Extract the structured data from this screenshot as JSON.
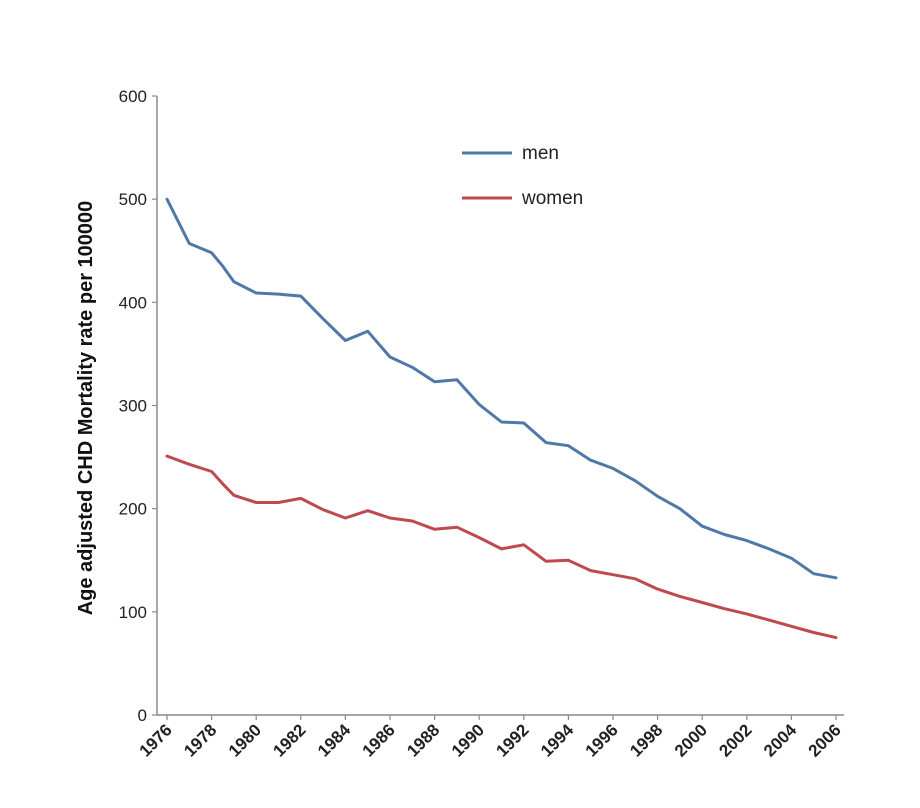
{
  "chart_data": {
    "type": "line",
    "ylabel": "Age adjusted CHD Mortality rate per 100000",
    "xlabel": "",
    "title": "",
    "ylim": [
      0,
      600
    ],
    "xlim": [
      1976,
      2006
    ],
    "y_ticks": [
      "0",
      "100",
      "200",
      "300",
      "400",
      "500",
      "600"
    ],
    "x_ticks": [
      "1976",
      "1978",
      "1980",
      "1982",
      "1984",
      "1986",
      "1988",
      "1990",
      "1992",
      "1994",
      "1996",
      "1998",
      "2000",
      "2002",
      "2004",
      "2006"
    ],
    "grid": false,
    "legend": "top-center",
    "series": [
      {
        "name": "men",
        "color": "#4f77a8",
        "x": [
          1976,
          1977,
          1978,
          1978.5,
          1979,
          1980,
          1981,
          1982,
          1983,
          1984,
          1985,
          1986,
          1987,
          1988,
          1989,
          1990,
          1991,
          1992,
          1993,
          1994,
          1995,
          1996,
          1997,
          1998,
          1999,
          2000,
          2001,
          2002,
          2003,
          2004,
          2005,
          2006
        ],
        "y": [
          500,
          457,
          448,
          435,
          420,
          409,
          408,
          406,
          384,
          363,
          372,
          347,
          337,
          323,
          325,
          301,
          284,
          283,
          264,
          261,
          247,
          239,
          227,
          212,
          200,
          183,
          175,
          169,
          161,
          152,
          137,
          133
        ]
      },
      {
        "name": "women",
        "color": "#bd4a4f",
        "x": [
          1976,
          1977,
          1978,
          1978.5,
          1979,
          1980,
          1981,
          1982,
          1983,
          1984,
          1985,
          1986,
          1987,
          1988,
          1989,
          1990,
          1991,
          1992,
          1993,
          1994,
          1995,
          1996,
          1997,
          1998,
          1999,
          2000,
          2001,
          2002,
          2003,
          2004,
          2005,
          2006
        ],
        "y": [
          251,
          243,
          236,
          224,
          213,
          206,
          206,
          210,
          199,
          191,
          198,
          191,
          188,
          180,
          182,
          172,
          161,
          165,
          149,
          150,
          140,
          136,
          132,
          122,
          115,
          109,
          103,
          98,
          92,
          86,
          80,
          75
        ]
      }
    ]
  }
}
